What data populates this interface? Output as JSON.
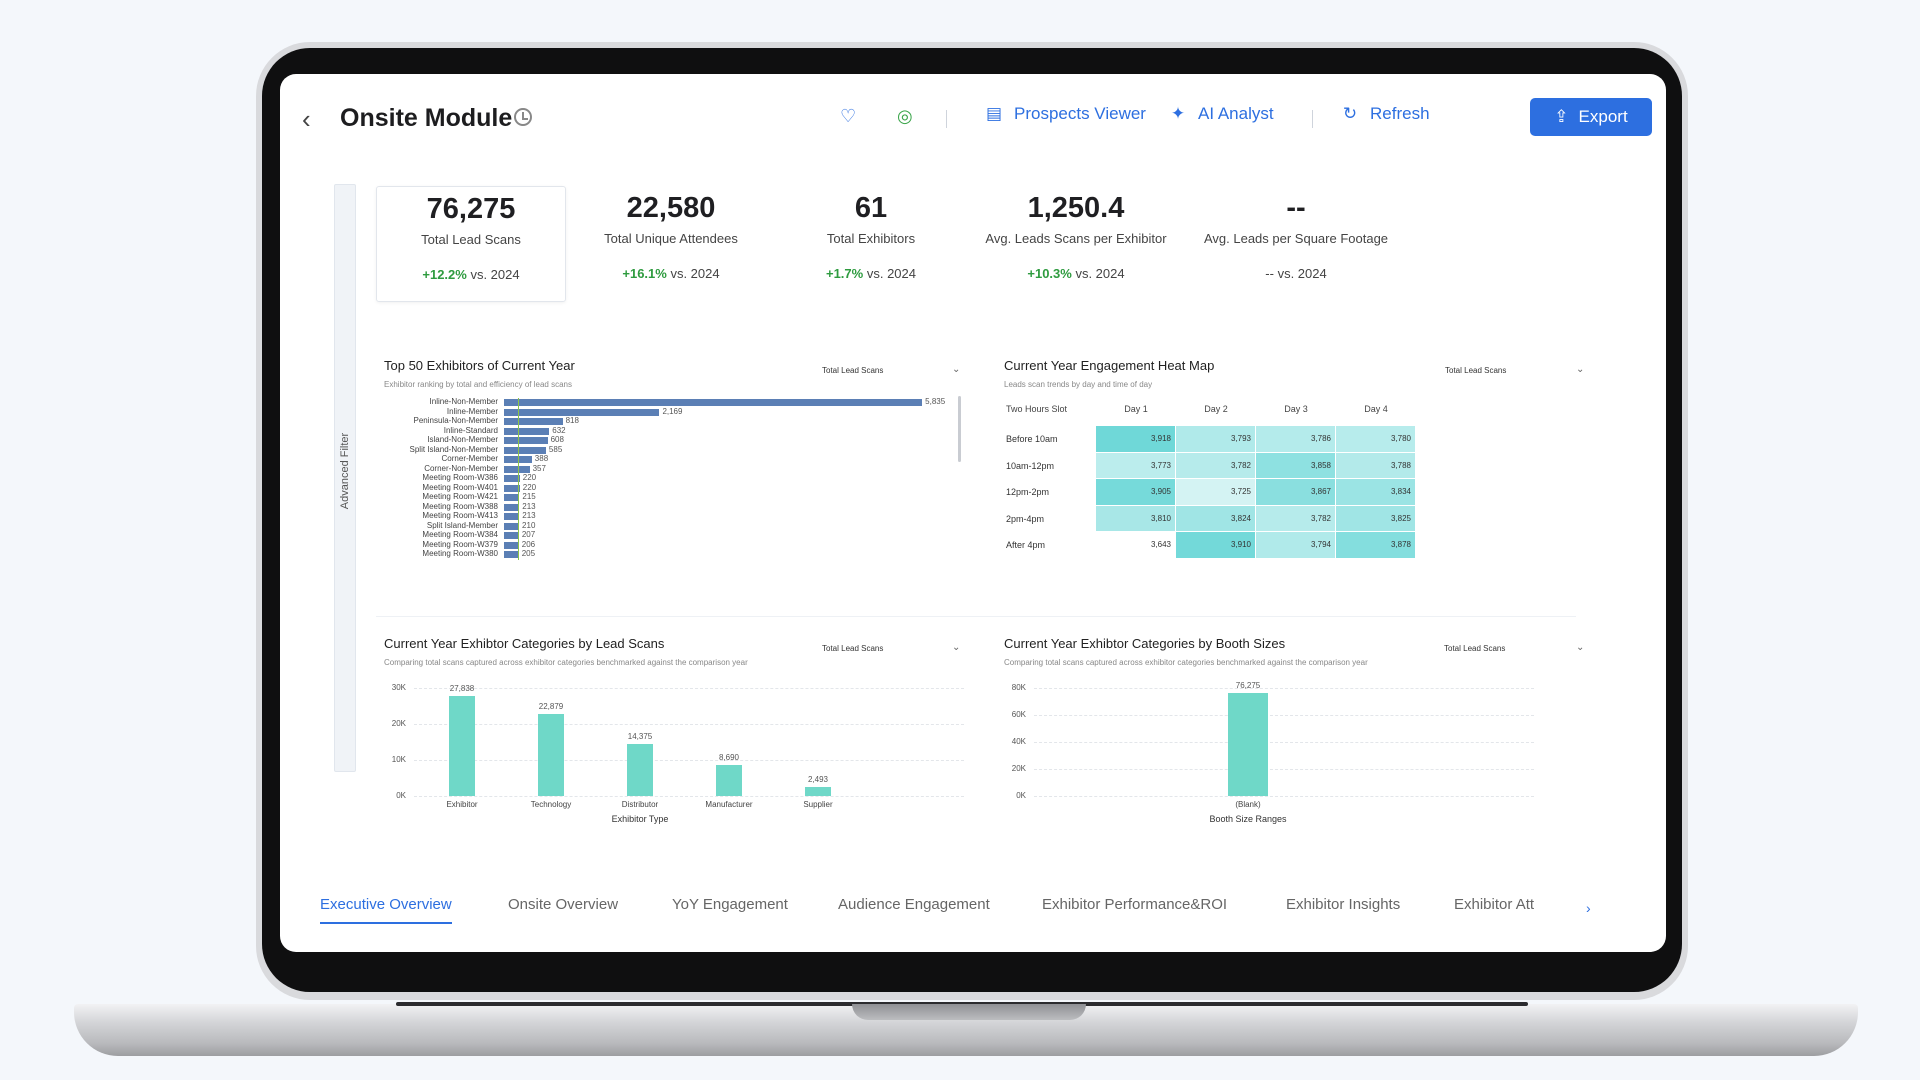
{
  "header": {
    "title": "Onsite Module",
    "prospects_viewer_label": "Prospects Viewer",
    "ai_analyst_label": "AI Analyst",
    "refresh_label": "Refresh",
    "export_label": "Export",
    "icons": [
      "back-arrow-icon",
      "history-icon",
      "heart-icon",
      "globe-icon",
      "viewer-icon",
      "sparkle-icon",
      "refresh-icon",
      "upload-icon"
    ],
    "accent": "#2d6fe0"
  },
  "sidebar": {
    "advanced_filter_label": "Advanced Filter"
  },
  "kpis": [
    {
      "value": "76,275",
      "label": "Total Lead Scans",
      "delta": "+12.2%",
      "compare": "vs. 2024"
    },
    {
      "value": "22,580",
      "label": "Total Unique Attendees",
      "delta": "+16.1%",
      "compare": "vs. 2024"
    },
    {
      "value": "61",
      "label": "Total Exhibitors",
      "delta": "+1.7%",
      "compare": "vs. 2024"
    },
    {
      "value": "1,250.4",
      "label": "Avg. Leads Scans per Exhibitor",
      "delta": "+10.3%",
      "compare": "vs. 2024"
    },
    {
      "value": "--",
      "label": "Avg. Leads per Square Footage",
      "delta": "--",
      "compare": "vs. 2024"
    }
  ],
  "panels": {
    "top_exhibitors": {
      "title": "Top 50 Exhibitors of Current Year",
      "subtitle": "Exhibitor ranking by total and efficiency of lead scans",
      "metric": "Total Lead Scans"
    },
    "heatmap": {
      "title": "Current Year Engagement Heat Map",
      "subtitle": "Leads scan trends by day and time of day",
      "metric": "Total Lead Scans"
    },
    "categories": {
      "title": "Current Year Exhibtor Categories by Lead Scans",
      "subtitle": "Comparing total scans captured across exhibitor categories benchmarked against the comparison year",
      "metric": "Total Lead Scans"
    },
    "booth": {
      "title": "Current Year Exhibtor Categories by Booth Sizes",
      "subtitle": "Comparing total scans captured across exhibitor categories benchmarked against the comparison year",
      "metric": "Total Lead Scans"
    }
  },
  "chart_data": [
    {
      "type": "bar",
      "orientation": "horizontal",
      "title": "Top 50 Exhibitors of Current Year",
      "categories": [
        "Inline-Non-Member",
        "Inline-Member",
        "Peninsula-Non-Member",
        "Inline-Standard",
        "Island-Non-Member",
        "Split Island-Non-Member",
        "Corner-Member",
        "Corner-Non-Member",
        "Meeting Room-W386",
        "Meeting Room-W401",
        "Meeting Room-W421",
        "Meeting Room-W388",
        "Meeting Room-W413",
        "Split Island-Member",
        "Meeting Room-W384",
        "Meeting Room-W379",
        "Meeting Room-W380"
      ],
      "values": [
        5835,
        2169,
        818,
        632,
        608,
        585,
        388,
        357,
        220,
        220,
        215,
        213,
        213,
        210,
        207,
        206,
        205
      ],
      "labels": [
        "5,835",
        "2,169",
        "818",
        "632",
        "608",
        "585",
        "388",
        "357",
        "220",
        "220",
        "215",
        "213",
        "213",
        "210",
        "207",
        "206",
        "205"
      ],
      "xlim": [
        0,
        6000
      ],
      "color": "#5b7fb5",
      "reference_line": 200
    },
    {
      "type": "heatmap",
      "title": "Current Year Engagement Heat Map",
      "row_header": "Two Hours Slot",
      "columns": [
        "Day 1",
        "Day 2",
        "Day 3",
        "Day 4"
      ],
      "rows": [
        "Before 10am",
        "10am-12pm",
        "12pm-2pm",
        "2pm-4pm",
        "After 4pm"
      ],
      "values": [
        [
          3918,
          3793,
          3786,
          3780
        ],
        [
          3773,
          3782,
          3858,
          3788
        ],
        [
          3905,
          3725,
          3867,
          3834
        ],
        [
          3810,
          3824,
          3782,
          3825
        ],
        [
          3643,
          3910,
          3794,
          3878
        ]
      ],
      "labels": [
        [
          "3,918",
          "3,793",
          "3,786",
          "3,780"
        ],
        [
          "3,773",
          "3,782",
          "3,858",
          "3,788"
        ],
        [
          "3,905",
          "3,725",
          "3,867",
          "3,834"
        ],
        [
          "3,810",
          "3,824",
          "3,782",
          "3,825"
        ],
        [
          "3,643",
          "3,910",
          "3,794",
          "3,878"
        ]
      ],
      "color_low": "#ffffff",
      "color_high": "#6fd8d8"
    },
    {
      "type": "bar",
      "title": "Current Year Exhibtor Categories by Lead Scans",
      "xlabel": "Exhibitor Type",
      "categories": [
        "Exhibitor",
        "Technology",
        "Distributor",
        "Manufacturer",
        "Supplier"
      ],
      "values": [
        27838,
        22879,
        14375,
        8690,
        2493
      ],
      "labels": [
        "27,838",
        "22,879",
        "14,375",
        "8,690",
        "2,493"
      ],
      "yticks": [
        "30K",
        "20K",
        "10K",
        "0K"
      ],
      "ylim": [
        0,
        30000
      ],
      "color": "#6fd8c8"
    },
    {
      "type": "bar",
      "title": "Current Year Exhibtor Categories by Booth Sizes",
      "xlabel": "Booth Size Ranges",
      "categories": [
        "(Blank)"
      ],
      "values": [
        76275
      ],
      "labels": [
        "76,275"
      ],
      "yticks": [
        "80K",
        "60K",
        "40K",
        "20K",
        "0K"
      ],
      "ylim": [
        0,
        80000
      ],
      "color": "#6fd8c8"
    }
  ],
  "tabs": [
    {
      "label": "Executive Overview",
      "active": true
    },
    {
      "label": "Onsite Overview",
      "active": false
    },
    {
      "label": "YoY Engagement",
      "active": false
    },
    {
      "label": "Audience Engagement",
      "active": false
    },
    {
      "label": "Exhibitor Performance&ROI",
      "active": false
    },
    {
      "label": "Exhibitor Insights",
      "active": false
    },
    {
      "label": "Exhibitor Att",
      "active": false
    }
  ]
}
